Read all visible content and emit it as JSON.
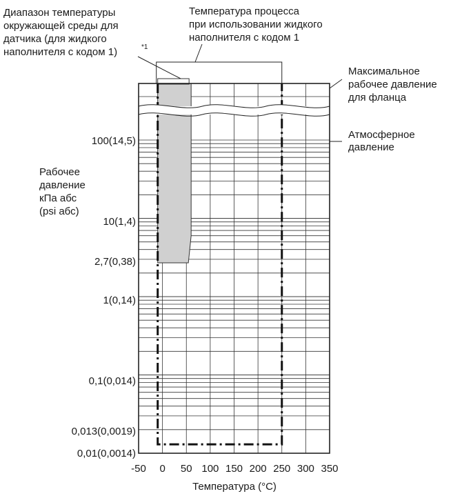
{
  "annotations": {
    "ambient_range": [
      "Диапазон температуры",
      "окружающей среды для",
      "датчика (для жидкого",
      "наполнителя с кодом 1)"
    ],
    "ambient_note": "*1",
    "process_temp": [
      "Температура процесса",
      "при использовании жидкого",
      "наполнителя с кодом 1"
    ],
    "max_pressure": [
      "Максимальное",
      "рабочее давление",
      "для фланца"
    ],
    "atmospheric": [
      "Атмосферное",
      "давление"
    ]
  },
  "chart_data": {
    "type": "diagram",
    "ylabel": [
      "Рабочее",
      "давление",
      "кПа абс",
      "(psi абс)"
    ],
    "xlabel": "Температура (°C)",
    "x_scale": "linear",
    "y_scale": "log",
    "xlim": [
      -50,
      350
    ],
    "ylim": [
      0.01,
      100
    ],
    "x_ticks": [
      -50,
      0,
      50,
      100,
      150,
      200,
      250,
      300,
      350
    ],
    "x_tick_labels": [
      "-50",
      "0",
      "50",
      "100",
      "150",
      "200",
      "250",
      "300",
      "350"
    ],
    "y_ticks": [
      100,
      10,
      2.7,
      1,
      0.1,
      0.013,
      0.01
    ],
    "y_tick_labels": [
      "100(14,5)",
      "10(1,4)",
      "2,7(0,38)",
      "1(0,14)",
      "0,1(0,014)",
      "0,013(0,0019)",
      "0,01(0,0014)"
    ],
    "ambient_region": {
      "x_range": [
        -10,
        60
      ],
      "pressure_min_kpa": 2.7,
      "color": "#d0d0d0"
    },
    "process_region": {
      "temp_min_c": -10,
      "temp_max_c": 250,
      "pressure_min_kpa": 0.013,
      "line_style": "dash-dot"
    }
  }
}
